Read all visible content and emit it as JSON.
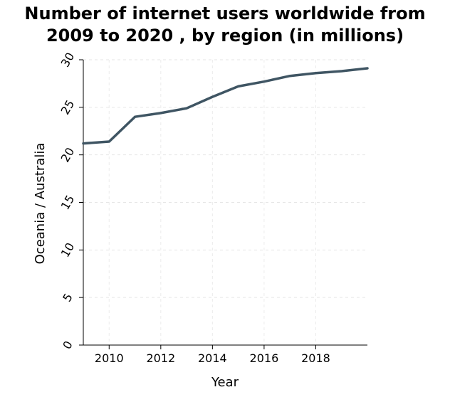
{
  "chart_data": {
    "type": "line",
    "title_lines": [
      "Number of internet users worldwide from",
      "2009 to 2020 , by region (in millions)"
    ],
    "xlabel": "Year",
    "ylabel": "Oceania / Australia",
    "xlim": [
      2009,
      2020
    ],
    "ylim": [
      0,
      30
    ],
    "x_ticks": [
      2010,
      2012,
      2014,
      2016,
      2018
    ],
    "y_ticks": [
      0,
      5,
      10,
      15,
      20,
      25,
      30
    ],
    "grid": true,
    "series": [
      {
        "x": [
          2009,
          2010,
          2011,
          2012,
          2013,
          2014,
          2015,
          2016,
          2017,
          2018,
          2019,
          2020
        ],
        "values": [
          21.2,
          21.4,
          24.0,
          24.4,
          24.9,
          26.1,
          27.2,
          27.7,
          28.3,
          28.6,
          28.8,
          29.1
        ]
      }
    ],
    "line_color": "#3f5563"
  }
}
